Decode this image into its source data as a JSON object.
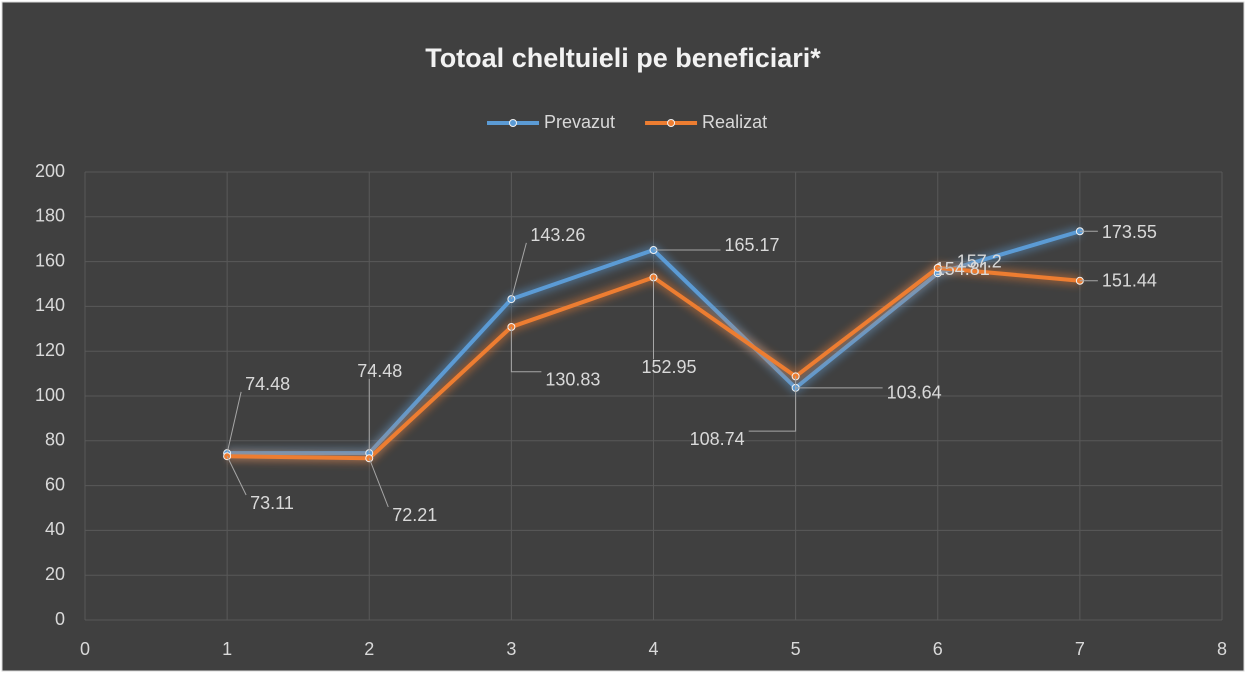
{
  "chart_data": {
    "type": "line",
    "title": "Totoal cheltuieli pe beneficiari*",
    "x": [
      1,
      2,
      3,
      4,
      5,
      6,
      7
    ],
    "series": [
      {
        "name": "Prevazut",
        "color": "#5b9bd5",
        "values": [
          74.48,
          74.48,
          143.26,
          165.17,
          103.64,
          154.81,
          173.55
        ]
      },
      {
        "name": "Realizat",
        "color": "#ed7d31",
        "values": [
          73.11,
          72.21,
          130.83,
          152.95,
          108.74,
          157.2,
          151.44
        ]
      }
    ],
    "xlim": [
      0,
      8
    ],
    "xticks": [
      0,
      1,
      2,
      3,
      4,
      5,
      6,
      7,
      8
    ],
    "ylim": [
      0,
      200
    ],
    "yticks": [
      0,
      20,
      40,
      60,
      80,
      100,
      120,
      140,
      160,
      180,
      200
    ],
    "grid": true,
    "legend": "top"
  }
}
